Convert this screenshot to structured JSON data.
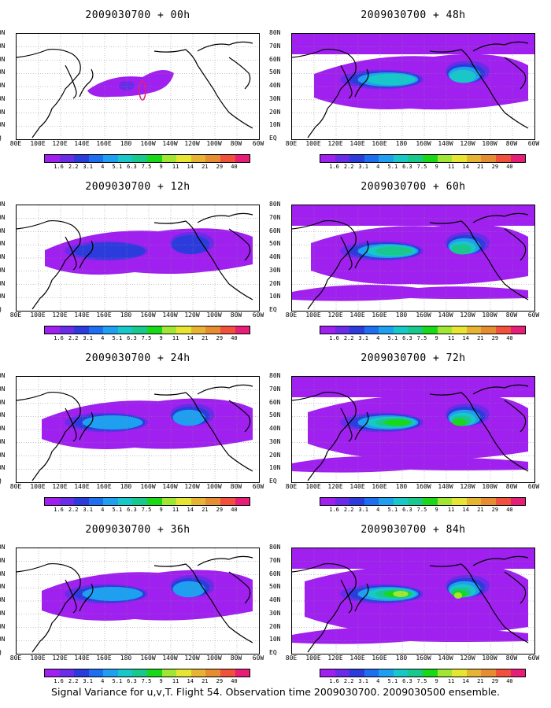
{
  "footer": "Signal Variance for u,v,T. Flight 54. Observation time 2009030700. 2009030500 ensemble.",
  "lat_labels": [
    "80N",
    "70N",
    "60N",
    "50N",
    "40N",
    "30N",
    "20N",
    "10N",
    "EQ"
  ],
  "lon_labels": [
    "80E",
    "100E",
    "120E",
    "140E",
    "160E",
    "180",
    "160W",
    "140W",
    "120W",
    "100W",
    "80W",
    "60W"
  ],
  "colorbar": {
    "colors": [
      "#a020f0",
      "#6a2ce8",
      "#2c3cdc",
      "#1e6ef0",
      "#1e9ff0",
      "#18c8c8",
      "#18c88c",
      "#18d818",
      "#a0e632",
      "#e6e632",
      "#e6b432",
      "#e68c32",
      "#f0503c",
      "#e61e78"
    ],
    "labels": [
      "1.6",
      "2.2",
      "3.1",
      "4",
      "5.1",
      "6.3",
      "7.5",
      "9",
      "11",
      "14",
      "21",
      "29",
      "40"
    ]
  },
  "panels": [
    {
      "title": "2009030700 + 00h",
      "intensity": 0
    },
    {
      "title": "2009030700 + 48h",
      "intensity": 3
    },
    {
      "title": "2009030700 + 12h",
      "intensity": 1
    },
    {
      "title": "2009030700 + 60h",
      "intensity": 4
    },
    {
      "title": "2009030700 + 24h",
      "intensity": 2
    },
    {
      "title": "2009030700 + 72h",
      "intensity": 5
    },
    {
      "title": "2009030700 + 36h",
      "intensity": 2
    },
    {
      "title": "2009030700 + 84h",
      "intensity": 6
    }
  ]
}
